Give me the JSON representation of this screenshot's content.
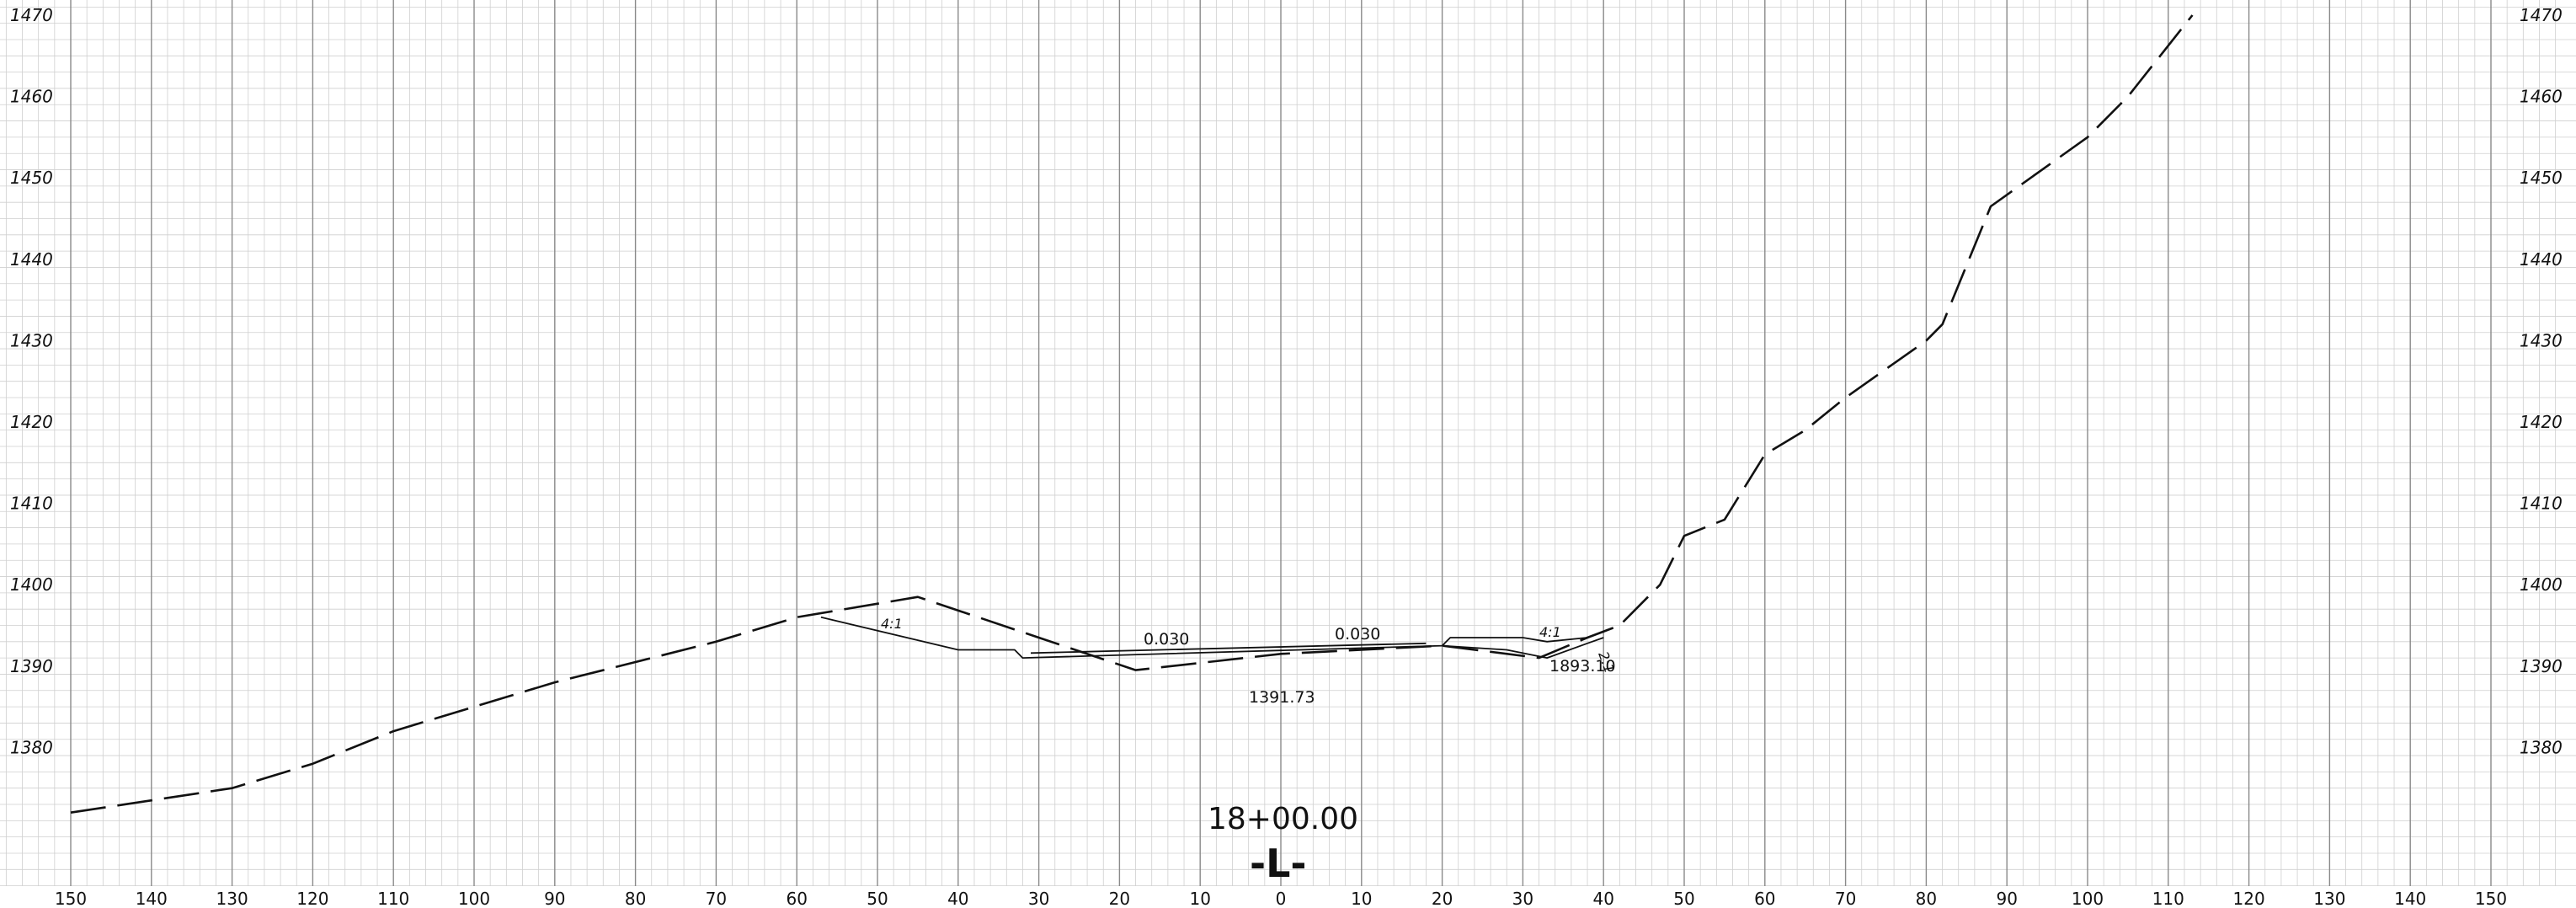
{
  "sheet": {
    "station_label": "18+00.00",
    "alignment_label": "-L-",
    "offset_ticks": [
      "150",
      "140",
      "130",
      "120",
      "110",
      "100",
      "90",
      "80",
      "70",
      "60",
      "50",
      "40",
      "30",
      "20",
      "10",
      "0",
      "10",
      "20",
      "30",
      "40",
      "50",
      "60",
      "70",
      "80",
      "90",
      "100",
      "110",
      "120",
      "130",
      "140",
      "150"
    ],
    "elevation_ticks": [
      "1470",
      "1460",
      "1450",
      "1440",
      "1430",
      "1420",
      "1410",
      "1400",
      "1390",
      "1380"
    ],
    "annotations": {
      "slope_left": "4:1",
      "slope_right": "4:1",
      "slope_right_small": "2:1",
      "cross_slope_left": "0.030",
      "cross_slope_right": "0.030",
      "grade_elev_left": "1391.73",
      "grade_elev_right": "1893.10"
    }
  },
  "chart_data": {
    "type": "line",
    "x_axis": {
      "label": "",
      "range": [
        -150,
        150
      ],
      "tick_step": 10
    },
    "y_axis": {
      "label": "",
      "range": [
        1367,
        1470
      ],
      "tick_step": 10
    },
    "grid": true,
    "series": [
      {
        "style": "dashed",
        "points": [
          [
            -150,
            1372.0
          ],
          [
            -130,
            1375.0
          ],
          [
            -120,
            1378.0
          ],
          [
            -110,
            1382.0
          ],
          [
            -100,
            1385.0
          ],
          [
            -90,
            1388.0
          ],
          [
            -80,
            1390.5
          ],
          [
            -70,
            1393.0
          ],
          [
            -60,
            1396.0
          ],
          [
            -45,
            1398.5
          ],
          [
            -30,
            1393.5
          ],
          [
            -18,
            1389.5
          ],
          [
            0,
            1391.5
          ],
          [
            20,
            1392.5
          ],
          [
            32,
            1391.0
          ],
          [
            38,
            1393.5
          ],
          [
            42,
            1395.0
          ],
          [
            47,
            1400.0
          ],
          [
            50,
            1406.0
          ],
          [
            55,
            1408.0
          ],
          [
            60,
            1416.0
          ],
          [
            65,
            1419.0
          ],
          [
            70,
            1423.0
          ],
          [
            80,
            1430.0
          ],
          [
            82,
            1432.0
          ],
          [
            88,
            1446.5
          ],
          [
            100,
            1455.0
          ],
          [
            105,
            1460.0
          ],
          [
            113,
            1470.0
          ]
        ]
      },
      {
        "style": "solid",
        "points": [
          [
            -57,
            1396.0
          ],
          [
            -40,
            1392.0
          ],
          [
            -33,
            1392.0
          ],
          [
            -32,
            1391.0
          ],
          [
            20,
            1392.5
          ],
          [
            21,
            1393.5
          ],
          [
            30,
            1393.5
          ],
          [
            33,
            1393.0
          ],
          [
            38,
            1393.5
          ]
        ]
      },
      {
        "style": "solid",
        "points": [
          [
            -31,
            1391.6
          ],
          [
            18,
            1392.8
          ]
        ]
      },
      {
        "style": "solid",
        "points": [
          [
            20,
            1392.5
          ],
          [
            28,
            1392.0
          ],
          [
            33,
            1391.0
          ],
          [
            38,
            1392.8
          ],
          [
            40,
            1393.5
          ]
        ]
      }
    ]
  }
}
